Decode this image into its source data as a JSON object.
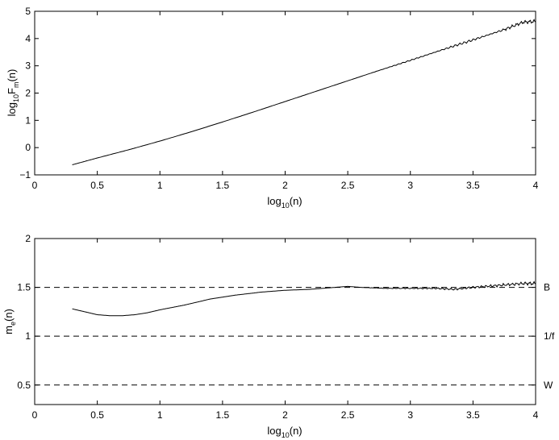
{
  "chart_data": [
    {
      "type": "line",
      "xlabel": {
        "base": "log",
        "sub": "10",
        "tail": "(n)"
      },
      "ylabel": {
        "base": "log",
        "sub": "10",
        "mid": "F",
        "sub2": "m",
        "tail": "(n)"
      },
      "xlim": [
        0,
        4
      ],
      "ylim": [
        -1,
        5
      ],
      "xticks": [
        0,
        0.5,
        1,
        1.5,
        2,
        2.5,
        3,
        3.5,
        4
      ],
      "xtick_labels": [
        "0",
        "0.5",
        "1",
        "1.5",
        "2",
        "2.5",
        "3",
        "3.5",
        "4"
      ],
      "yticks": [
        -1,
        0,
        1,
        2,
        3,
        4,
        5
      ],
      "ytick_labels": [
        "−1",
        "0",
        "1",
        "2",
        "3",
        "4",
        "5"
      ],
      "series": [
        {
          "x": [
            0.3,
            0.5,
            0.75,
            1.0,
            1.25,
            1.5,
            1.75,
            2.0,
            2.25,
            2.5,
            2.75,
            3.0,
            3.25,
            3.5,
            3.75,
            3.9,
            4.0
          ],
          "y": [
            -0.63,
            -0.38,
            -0.08,
            0.24,
            0.58,
            0.94,
            1.31,
            1.69,
            2.07,
            2.45,
            2.83,
            3.2,
            3.58,
            3.95,
            4.33,
            4.6,
            4.63
          ]
        }
      ]
    },
    {
      "type": "line",
      "xlabel": {
        "base": "log",
        "sub": "10",
        "tail": "(n)"
      },
      "ylabel": {
        "base": "m",
        "sub": "e",
        "tail": "(n)"
      },
      "xlim": [
        0,
        4
      ],
      "ylim": [
        0.3,
        2
      ],
      "xticks": [
        0,
        0.5,
        1,
        1.5,
        2,
        2.5,
        3,
        3.5,
        4
      ],
      "xtick_labels": [
        "0",
        "0.5",
        "1",
        "1.5",
        "2",
        "2.5",
        "3",
        "3.5",
        "4"
      ],
      "yticks": [
        0.5,
        1,
        1.5,
        2
      ],
      "ytick_labels": [
        "0.5",
        "1",
        "1.5",
        "2"
      ],
      "series": [
        {
          "x": [
            0.3,
            0.4,
            0.5,
            0.6,
            0.7,
            0.8,
            0.9,
            1.0,
            1.2,
            1.4,
            1.6,
            1.8,
            2.0,
            2.2,
            2.4,
            2.5,
            2.6,
            2.8,
            3.0,
            3.2,
            3.35,
            3.5,
            3.7,
            3.9,
            4.0
          ],
          "y": [
            1.28,
            1.25,
            1.22,
            1.21,
            1.21,
            1.22,
            1.24,
            1.27,
            1.32,
            1.38,
            1.42,
            1.45,
            1.47,
            1.48,
            1.5,
            1.51,
            1.5,
            1.49,
            1.49,
            1.49,
            1.48,
            1.5,
            1.52,
            1.54,
            1.54
          ]
        }
      ],
      "reference_lines": [
        {
          "y": 1.5,
          "label": "B"
        },
        {
          "y": 1.0,
          "label": "1/f"
        },
        {
          "y": 0.5,
          "label": "W"
        }
      ]
    }
  ]
}
